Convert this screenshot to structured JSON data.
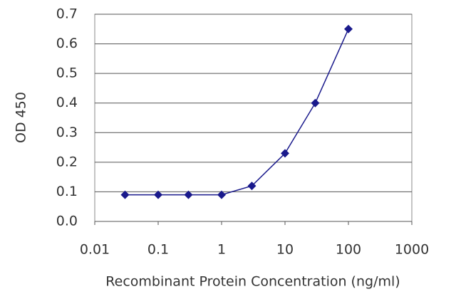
{
  "chart_data": {
    "type": "line",
    "y_label": "OD 450",
    "x_label": "Recombinant Protein Concentration (ng/ml)",
    "x": [
      0.03,
      0.1,
      0.3,
      1,
      3,
      10,
      30,
      100
    ],
    "series": [
      {
        "color": "#1a1a8c",
        "values": [
          0.09,
          0.09,
          0.09,
          0.09,
          0.12,
          0.23,
          0.4,
          0.65
        ]
      }
    ],
    "xlog": true,
    "xlim": [
      0.01,
      1000
    ],
    "xticks": [
      0.01,
      0.1,
      1,
      10,
      100,
      1000
    ],
    "ylim": [
      0,
      0.7
    ],
    "yticks": [
      {
        "value": 0,
        "label": "0.0"
      },
      0.1,
      0.2,
      0.3,
      0.4,
      0.5,
      0.6,
      0.7
    ],
    "grid": true
  }
}
